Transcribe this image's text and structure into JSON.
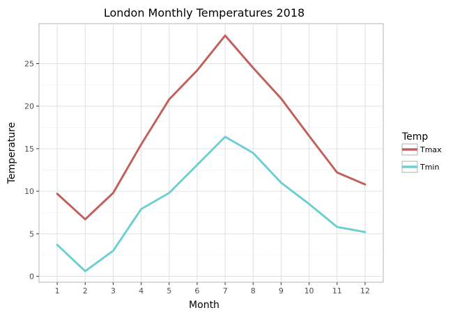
{
  "chart_data": {
    "type": "line",
    "title": "London Monthly Temperatures 2018",
    "xlabel": "Month",
    "ylabel": "Temperature",
    "x": [
      1,
      2,
      3,
      4,
      5,
      6,
      7,
      8,
      9,
      10,
      11,
      12
    ],
    "x_ticks": [
      "1",
      "2",
      "3",
      "4",
      "5",
      "6",
      "7",
      "8",
      "9",
      "10",
      "11",
      "12"
    ],
    "y_ticks": [
      "0",
      "5",
      "10",
      "15",
      "20",
      "25"
    ],
    "xlim": [
      0.35,
      12.65
    ],
    "ylim": [
      -0.7,
      29.7
    ],
    "grid": true,
    "legend_title": "Temp",
    "legend_position": "right",
    "series": [
      {
        "name": "Tmax",
        "color": "#c0625b",
        "values": [
          9.7,
          6.7,
          9.8,
          15.5,
          20.8,
          24.2,
          28.3,
          24.5,
          20.9,
          16.5,
          12.2,
          10.8
        ]
      },
      {
        "name": "Tmin",
        "color": "#6ecfd3",
        "values": [
          3.7,
          0.6,
          3.0,
          7.9,
          9.8,
          13.1,
          16.4,
          14.5,
          11.0,
          8.5,
          5.8,
          5.2
        ]
      }
    ]
  }
}
